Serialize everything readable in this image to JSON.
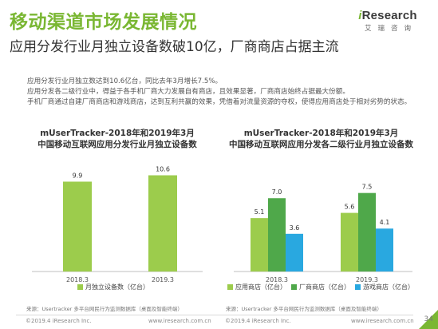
{
  "page": {
    "title": "移动渠道市场发展情况",
    "subtitle": "应用分发行业月独立设备数破10亿，厂商商店占据主流",
    "paragraphs": [
      "应用分发行业月独立数达到10.6亿台，同比去年3月增长7.5%。",
      "应用分发各二级行业中，得益于各手机厂商大力发展自有商店，且效果显著，厂商商店始终占据最大份额。",
      "手机厂商通过自建厂商商店和游戏商店，达到互利共赢的效果，凭借着对流量资源的夺权，使得应用商店处于相对劣势的状态。"
    ],
    "page_number": "34"
  },
  "logo": {
    "brand_i": "i",
    "brand_rest": "Research",
    "cn": "艾瑞咨询"
  },
  "chart1_title": {
    "line1": "mUserTracker-2018年和2019年3月",
    "line2": "中国移动互联网应用分发行业月独立设备数"
  },
  "chart2_title": {
    "line1": "mUserTracker-2018年和2019年3月",
    "line2": "中国移动互联网应用分发各二级行业月独立设备数"
  },
  "footer": {
    "source": "来源：Usertracker 多平台网民行为监测数据库（桌面及智能终端）",
    "copyright": "©2019.4 iResearch Inc.",
    "url": "www.iresearch.com.cn"
  },
  "colors": {
    "title_green": "#7ab733",
    "bar_green": "#9ccc4c",
    "bar_dark_green": "#4fa84a",
    "bar_blue": "#29a8e0"
  },
  "chart_data": [
    {
      "type": "bar",
      "categories": [
        "2018.3",
        "2019.3"
      ],
      "series": [
        {
          "name": "月独立设备数（亿台）",
          "values": [
            9.9,
            10.6
          ],
          "color": "#9ccc4c"
        }
      ],
      "ylim": [
        0,
        12
      ],
      "grid": false,
      "legend": "bottom"
    },
    {
      "type": "bar",
      "categories": [
        "2018.3",
        "2019.3"
      ],
      "series": [
        {
          "name": "应用商店（亿台）",
          "values": [
            5.1,
            5.6
          ],
          "color": "#9ccc4c"
        },
        {
          "name": "厂商商店（亿台）",
          "values": [
            7.0,
            7.5
          ],
          "color": "#4fa84a"
        },
        {
          "name": "游戏商店（亿台）",
          "values": [
            3.6,
            4.1
          ],
          "color": "#29a8e0"
        }
      ],
      "ylim": [
        0,
        9
      ],
      "grid": false,
      "legend": "bottom"
    }
  ]
}
